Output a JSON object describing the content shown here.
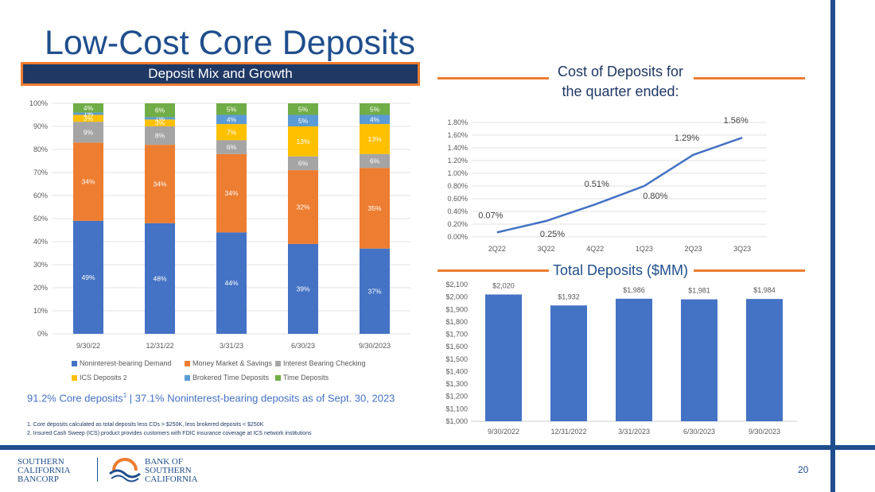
{
  "title": "Low-Cost Core Deposits",
  "mix_banner": "Deposit Mix and Growth",
  "cost_title": "Cost of Deposits for the quarter ended:",
  "total_title": "Total Deposits ($MM)",
  "core_note": {
    "pre": "91.2% Core deposits",
    "sup": "1",
    "post": " | 37.1% Noninterest-bearing deposits as of Sept. 30, 2023"
  },
  "footnotes": [
    "1.  Core deposits calculated as total deposits less CDs > $250K, less brokered deposits < $250K",
    "2.  Insured Cash Sweep (ICS) product provides customers with FDIC insurance coverage at ICS network institutions"
  ],
  "page_number": "20",
  "logos": {
    "left": [
      "SOUTHERN",
      "CALIFORNIA",
      "BANCORP"
    ],
    "right": [
      "BANK OF",
      "SOUTHERN",
      "CALIFORNIA"
    ]
  },
  "colors": {
    "navy": "#1f3864",
    "blue": "#1f4e8c",
    "orange": "#ed7d31",
    "bar_blue": "#4472c4"
  },
  "chart_data": [
    {
      "type": "bar",
      "stacked": true,
      "title": "Deposit Mix and Growth",
      "categories": [
        "9/30/22",
        "12/31/22",
        "3/31/23",
        "6/30/23",
        "9/30/2023"
      ],
      "ylim": [
        0,
        100
      ],
      "y_ticks": [
        "0%",
        "10%",
        "20%",
        "30%",
        "40%",
        "50%",
        "60%",
        "70%",
        "80%",
        "90%",
        "100%"
      ],
      "series": [
        {
          "name": "Noninterest-bearing Demand",
          "color": "#4472c4",
          "values": [
            49,
            48,
            44,
            39,
            37
          ],
          "labels": [
            "49%",
            "48%",
            "44%",
            "39%",
            "37%"
          ]
        },
        {
          "name": "Money Market & Savings",
          "color": "#ed7d31",
          "values": [
            34,
            34,
            34,
            32,
            35
          ],
          "labels": [
            "34%",
            "34%",
            "34%",
            "32%",
            "35%"
          ]
        },
        {
          "name": "Interest Bearing Checking",
          "color": "#a5a5a5",
          "values": [
            9,
            8,
            6,
            6,
            6
          ],
          "labels": [
            "9%",
            "8%",
            "6%",
            "6%",
            "6%"
          ]
        },
        {
          "name": "ICS Deposits",
          "legend_sup": "2",
          "color": "#ffc000",
          "values": [
            3,
            3,
            7,
            13,
            13
          ],
          "labels": [
            "3%",
            "3%",
            "7%",
            "13%",
            "13%"
          ]
        },
        {
          "name": "Brokered Time Deposits",
          "color": "#5b9bd5",
          "values": [
            1,
            1,
            4,
            5,
            4
          ],
          "labels": [
            "1%",
            "1%",
            "4%",
            "5%",
            "4%"
          ]
        },
        {
          "name": "Time Deposits",
          "color": "#70ad47",
          "values": [
            4,
            6,
            5,
            5,
            5
          ],
          "labels": [
            "4%",
            "6%",
            "5%",
            "5%",
            "5%"
          ]
        }
      ]
    },
    {
      "type": "line",
      "title": "Cost of Deposits for the quarter ended:",
      "categories": [
        "2Q22",
        "3Q22",
        "4Q22",
        "1Q23",
        "2Q23",
        "3Q23"
      ],
      "values": [
        0.07,
        0.25,
        0.51,
        0.8,
        1.29,
        1.56
      ],
      "labels": [
        "0.07%",
        "0.25%",
        "0.51%",
        "0.80%",
        "1.29%",
        "1.56%"
      ],
      "ylim": [
        0,
        1.8
      ],
      "y_ticks": [
        "0.00%",
        "0.20%",
        "0.40%",
        "0.60%",
        "0.80%",
        "1.00%",
        "1.20%",
        "1.40%",
        "1.60%",
        "1.80%"
      ],
      "color": "#4472c4"
    },
    {
      "type": "bar",
      "title": "Total Deposits ($MM)",
      "categories": [
        "9/30/2022",
        "12/31/2022",
        "3/31/2023",
        "6/30/2023",
        "9/30/2023"
      ],
      "values": [
        2020,
        1932,
        1986,
        1981,
        1984
      ],
      "labels": [
        "$2,020",
        "$1,932",
        "$1,986",
        "$1,981",
        "$1,984"
      ],
      "ylim": [
        1000,
        2100
      ],
      "y_ticks": [
        "$1,000",
        "$1,100",
        "$1,200",
        "$1,300",
        "$1,400",
        "$1,500",
        "$1,600",
        "$1,700",
        "$1,800",
        "$1,900",
        "$2,000",
        "$2,100"
      ],
      "color": "#4472c4"
    }
  ]
}
